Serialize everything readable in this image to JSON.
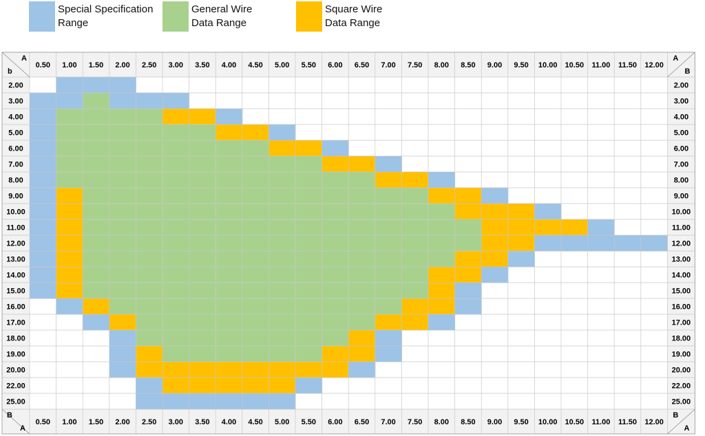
{
  "legend": [
    {
      "line1": "Special Specification",
      "line2": "Range",
      "color": "#9dc3e6"
    },
    {
      "line1": "General Wire",
      "line2": "Data Range",
      "color": "#a9d18e"
    },
    {
      "line1": "Square Wire",
      "line2": "Data Range",
      "color": "#ffc000"
    }
  ],
  "corner_labels": {
    "a": "A",
    "b": "B",
    "b_lower": "b"
  },
  "chart_data": {
    "type": "heatmap",
    "x_label": "A",
    "y_label": "B",
    "x_categories": [
      "0.50",
      "1.00",
      "1.50",
      "2.00",
      "2.50",
      "3.00",
      "3.50",
      "4.00",
      "4.50",
      "5.00",
      "5.50",
      "6.00",
      "6.50",
      "7.00",
      "7.50",
      "8.00",
      "8.50",
      "9.00",
      "9.50",
      "10.00",
      "10.50",
      "11.00",
      "11.50",
      "12.00"
    ],
    "y_categories": [
      "2.00",
      "3.00",
      "4.00",
      "5.00",
      "6.00",
      "7.00",
      "8.00",
      "9.00",
      "10.00",
      "11.00",
      "12.00",
      "13.00",
      "14.00",
      "15.00",
      "16.00",
      "17.00",
      "18.00",
      "19.00",
      "20.00",
      "22.00",
      "25.00"
    ],
    "value_legend": {
      "S": "Special Specification Range",
      "G": "General Wire Data Range",
      "Q": "Square Wire Data Range",
      ".": "none"
    },
    "rows": [
      ".SSS....................",
      "SSGSSS..................",
      "SGGGGQQS................",
      "SGGGGGGQQS..............",
      "SGGGGGGGGQQS............",
      "SGGGGGGGGGGQQS..........",
      "SGGGGGGGGGGGGQQS........",
      "SQGGGGGGGGGGGGGQQS......",
      "SQGGGGGGGGGGGGGGQQQS....",
      "SQGGGGGGGGGGGGGGGQQQQS..",
      "SQGGGGGGGGGGGGGGGQQSSSSS",
      "SQGGGGGGGGGGGGGGQQS.....",
      "SQGGGGGGGGGGGGGQQS......",
      "SQGGGGGGGGGGGGGQS.......",
      ".SQGGGGGGGGGGGQQS.......",
      "..SQGGGGGGGGGQQS........",
      "...SGGGGGGGGQS..........",
      "...SQGGGGGGQQS..........",
      "...SQQQQQQQQS...........",
      "....SQQQQQS.............",
      "....SSSSSS.............."
    ],
    "colors": {
      "S": "#9dc3e6",
      "G": "#a9d18e",
      "Q": "#ffc000"
    }
  }
}
